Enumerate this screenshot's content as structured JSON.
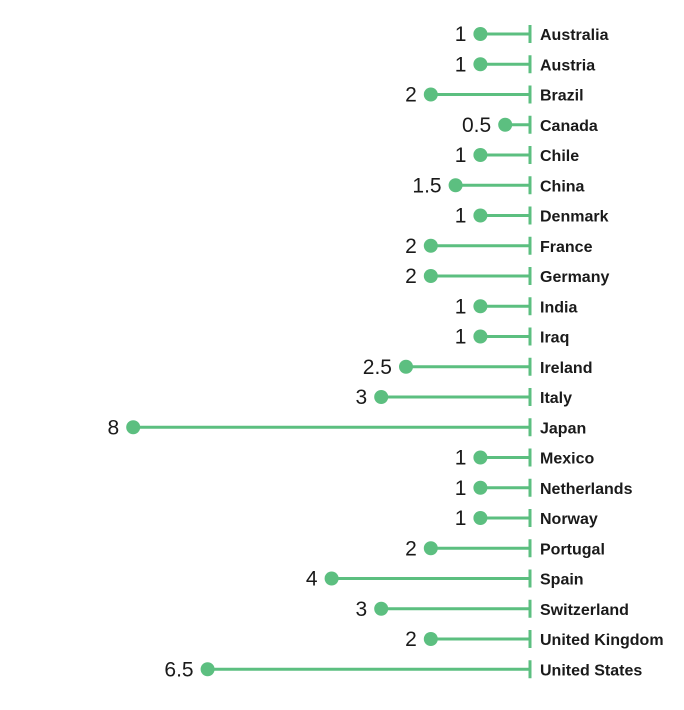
{
  "chart_data": {
    "type": "bar",
    "orientation": "horizontal-lollipop",
    "direction": "right-to-left",
    "categories": [
      "Australia",
      "Austria",
      "Brazil",
      "Canada",
      "Chile",
      "China",
      "Denmark",
      "France",
      "Germany",
      "India",
      "Iraq",
      "Ireland",
      "Italy",
      "Japan",
      "Mexico",
      "Netherlands",
      "Norway",
      "Portugal",
      "Spain",
      "Switzerland",
      "United Kingdom",
      "United States"
    ],
    "values": [
      1,
      1,
      2,
      0.5,
      1,
      1.5,
      1,
      2,
      2,
      1,
      1,
      2.5,
      3,
      8,
      1,
      1,
      1,
      2,
      4,
      3,
      2,
      6.5
    ],
    "value_labels": [
      "1",
      "1",
      "2",
      "0.5",
      "1",
      "1.5",
      "1",
      "2",
      "2",
      "1",
      "1",
      "2.5",
      "3",
      "8",
      "1",
      "1",
      "1",
      "2",
      "4",
      "3",
      "2",
      "6.5"
    ],
    "title": "",
    "xlabel": "",
    "ylabel": "",
    "xlim": [
      0,
      8
    ],
    "grid": false,
    "legend": "none",
    "color": "#5cbf80"
  }
}
